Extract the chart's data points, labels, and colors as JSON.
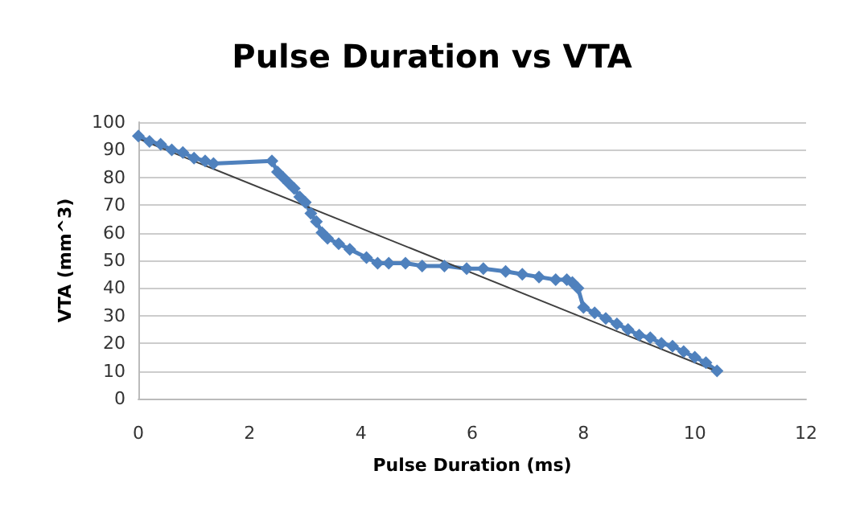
{
  "chart_data": {
    "type": "line",
    "title": "Pulse Duration vs VTA",
    "xlabel": "Pulse Duration (ms)",
    "ylabel": "VTA (mm^3)",
    "xlim": [
      0,
      12
    ],
    "xticks": [
      0,
      2,
      4,
      6,
      8,
      10,
      12
    ],
    "ylim": [
      0,
      100
    ],
    "yticks": [
      0,
      10,
      20,
      30,
      40,
      50,
      60,
      70,
      80,
      90,
      100
    ],
    "grid": "y",
    "series": [
      {
        "color": "#4f81bd",
        "marker": "diamond",
        "x": [
          0,
          0.2,
          0.4,
          0.6,
          0.8,
          1.0,
          1.2,
          1.35,
          2.4,
          2.5,
          2.6,
          2.7,
          2.8,
          2.9,
          3.0,
          3.1,
          3.2,
          3.3,
          3.4,
          3.6,
          3.8,
          4.1,
          4.3,
          4.5,
          4.8,
          5.1,
          5.5,
          5.9,
          6.2,
          6.6,
          6.9,
          7.2,
          7.5,
          7.7,
          7.8,
          7.9,
          8.0,
          8.2,
          8.4,
          8.6,
          8.8,
          9.0,
          9.2,
          9.4,
          9.6,
          9.8,
          10.0,
          10.2,
          10.4
        ],
        "values": [
          95,
          93,
          92,
          90,
          89,
          87,
          86,
          85,
          86,
          82,
          80,
          78,
          76,
          73,
          71,
          67,
          64,
          60,
          58,
          56,
          54,
          51,
          49,
          49,
          49,
          48,
          48,
          47,
          47,
          46,
          45,
          44,
          43,
          43,
          42,
          40,
          33,
          31,
          29,
          27,
          25,
          23,
          22,
          20,
          19,
          17,
          15,
          13,
          10
        ]
      },
      {
        "color": "#404040",
        "marker": "none",
        "x": [
          0,
          10.4
        ],
        "values": [
          94,
          9.8
        ]
      }
    ]
  }
}
